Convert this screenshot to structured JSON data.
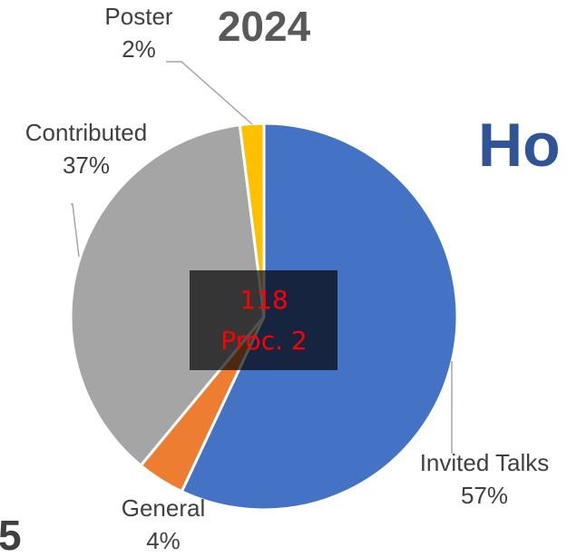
{
  "chart_data": {
    "type": "pie",
    "title": "2024",
    "categories": [
      "Invited Talks",
      "General",
      "Contributed",
      "Poster"
    ],
    "values": [
      57,
      4,
      37,
      2
    ],
    "value_labels": [
      "57%",
      "4%",
      "37%",
      "2%"
    ],
    "colors": [
      "#4472c4",
      "#ed7d31",
      "#a5a5a5",
      "#ffc000"
    ],
    "overlay": [
      "118",
      "Proc. 2"
    ],
    "side_texts": [
      "Ho",
      "5"
    ]
  }
}
